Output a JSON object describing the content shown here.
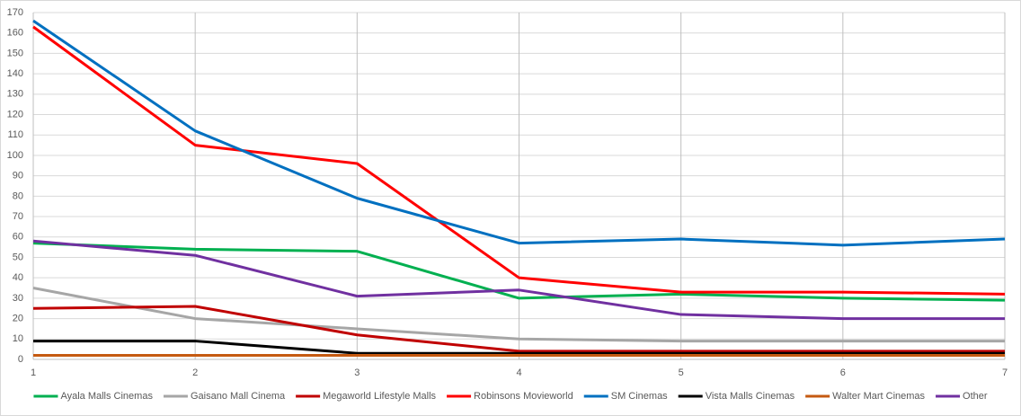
{
  "chart_data": {
    "type": "line",
    "x": [
      1,
      2,
      3,
      4,
      5,
      6,
      7
    ],
    "xlim": [
      1,
      7
    ],
    "xticks": [
      1,
      2,
      3,
      4,
      5,
      6,
      7
    ],
    "ylim": [
      0,
      170
    ],
    "yticks": [
      0,
      10,
      20,
      30,
      40,
      50,
      60,
      70,
      80,
      90,
      100,
      110,
      120,
      130,
      140,
      150,
      160,
      170
    ],
    "grid": true,
    "legend": "bottom",
    "series": [
      {
        "name": "Ayala Malls Cinemas",
        "color": "#00b050",
        "values": [
          57,
          54,
          53,
          30,
          32,
          30,
          29
        ]
      },
      {
        "name": "Gaisano Mall Cinema",
        "color": "#a6a6a6",
        "values": [
          35,
          20,
          15,
          10,
          9,
          9,
          9
        ]
      },
      {
        "name": "Megaworld Lifestyle Malls",
        "color": "#c00000",
        "values": [
          25,
          26,
          12,
          4,
          4,
          4,
          4
        ]
      },
      {
        "name": "Robinsons Movieworld",
        "color": "#ff0000",
        "values": [
          163,
          105,
          96,
          40,
          33,
          33,
          32
        ]
      },
      {
        "name": "SM Cinemas",
        "color": "#0070c0",
        "values": [
          166,
          112,
          79,
          57,
          59,
          56,
          59
        ]
      },
      {
        "name": "Vista Malls Cinemas",
        "color": "#000000",
        "values": [
          9,
          9,
          3,
          3,
          3,
          3,
          3
        ]
      },
      {
        "name": "Walter Mart Cinemas",
        "color": "#c55a11",
        "values": [
          2,
          2,
          2,
          2,
          2,
          2,
          2
        ]
      },
      {
        "name": "Other",
        "color": "#7030a0",
        "values": [
          58,
          51,
          31,
          34,
          22,
          20,
          20
        ]
      }
    ]
  }
}
